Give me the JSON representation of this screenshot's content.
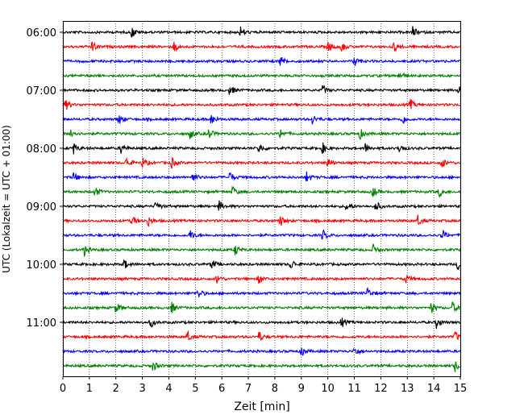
{
  "chart_data": {
    "type": "line",
    "title": "",
    "xlabel": "Zeit  [min]",
    "ylabel": "UTC (Lokalzeit = UTC + 01:00)",
    "xlim": [
      0,
      15
    ],
    "x_ticks": [
      0,
      1,
      2,
      3,
      4,
      5,
      6,
      7,
      8,
      9,
      10,
      11,
      12,
      13,
      14,
      15
    ],
    "grid": "vertical dotted",
    "y_axis": "time of day, top to bottom, 06:00 to 11:45 in 15-minute rows",
    "y_ticks": [
      "06:00",
      "07:00",
      "08:00",
      "09:00",
      "10:00",
      "11:00"
    ],
    "row_color_cycle": [
      "#000000",
      "#ff0000",
      "#0000ff",
      "#008000"
    ],
    "rows": [
      {
        "start": "06:00",
        "color": "#000000",
        "events_min": [
          2.6,
          6.7,
          13.2
        ]
      },
      {
        "start": "06:15",
        "color": "#ff0000",
        "events_min": [
          1.1,
          4.2,
          10.0,
          10.5,
          12.5
        ]
      },
      {
        "start": "06:30",
        "color": "#0000ff",
        "events_min": [
          8.2,
          11.0
        ]
      },
      {
        "start": "06:45",
        "color": "#008000",
        "events_min": [
          12.7
        ]
      },
      {
        "start": "07:00",
        "color": "#000000",
        "events_min": [
          6.3,
          9.8,
          14.9
        ]
      },
      {
        "start": "07:15",
        "color": "#ff0000",
        "events_min": [
          0.1,
          13.1
        ]
      },
      {
        "start": "07:30",
        "color": "#0000ff",
        "events_min": [
          2.1,
          5.6,
          9.4,
          12.8
        ]
      },
      {
        "start": "07:45",
        "color": "#008000",
        "events_min": [
          0.3,
          4.8,
          5.5,
          8.2,
          11.2
        ]
      },
      {
        "start": "08:00",
        "color": "#000000",
        "events_min": [
          0.4,
          2.2,
          7.4,
          9.8,
          11.4,
          12.7
        ]
      },
      {
        "start": "08:15",
        "color": "#ff0000",
        "events_min": [
          2.4,
          3.0,
          4.1,
          10.0,
          14.3
        ]
      },
      {
        "start": "08:30",
        "color": "#0000ff",
        "events_min": [
          0.4,
          4.9,
          6.3,
          9.2
        ]
      },
      {
        "start": "08:45",
        "color": "#008000",
        "events_min": [
          1.2,
          6.4,
          11.7,
          14.2
        ]
      },
      {
        "start": "09:00",
        "color": "#000000",
        "events_min": [
          3.5,
          5.9,
          10.7,
          11.8
        ]
      },
      {
        "start": "09:15",
        "color": "#ff0000",
        "events_min": [
          2.6,
          3.2,
          8.2,
          13.4
        ]
      },
      {
        "start": "09:30",
        "color": "#0000ff",
        "events_min": [
          4.8,
          9.8,
          14.3
        ]
      },
      {
        "start": "09:45",
        "color": "#008000",
        "events_min": [
          0.8,
          6.5,
          11.7
        ]
      },
      {
        "start": "10:00",
        "color": "#000000",
        "events_min": [
          2.3,
          5.6,
          8.6,
          14.9
        ]
      },
      {
        "start": "10:15",
        "color": "#ff0000",
        "events_min": [
          5.8,
          7.4,
          12.9
        ]
      },
      {
        "start": "10:30",
        "color": "#0000ff",
        "events_min": [
          5.1,
          11.5
        ]
      },
      {
        "start": "10:45",
        "color": "#008000",
        "events_min": [
          2.0,
          4.1,
          13.9,
          14.7
        ]
      },
      {
        "start": "11:00",
        "color": "#000000",
        "events_min": [
          3.3,
          10.5,
          14.1
        ]
      },
      {
        "start": "11:15",
        "color": "#ff0000",
        "events_min": [
          4.7,
          7.4,
          14.8
        ]
      },
      {
        "start": "11:30",
        "color": "#0000ff",
        "events_min": [
          9.0,
          11.0
        ]
      },
      {
        "start": "11:45",
        "color": "#008000",
        "events_min": [
          3.4,
          14.8
        ]
      }
    ]
  }
}
